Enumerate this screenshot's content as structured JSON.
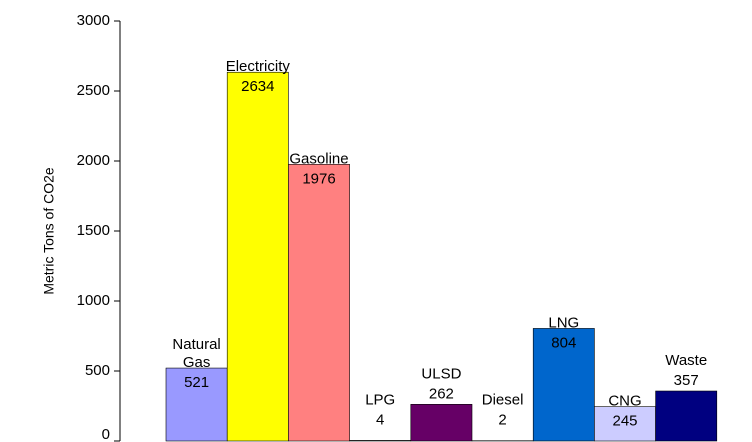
{
  "chart_data": {
    "type": "bar",
    "y_label": "Metric Tons of CO2e",
    "categories": [
      "Natural Gas",
      "Electricity",
      "Gasoline",
      "LPG",
      "ULSD",
      "Diesel",
      "LNG",
      "CNG",
      "Waste"
    ],
    "values": [
      521,
      2634,
      1976,
      4,
      262,
      2,
      804,
      245,
      357
    ],
    "colors": [
      "#9999ff",
      "#ffff00",
      "#ff8080",
      "#ccffff",
      "#660066",
      "#ff8080",
      "#0066cc",
      "#ccccff",
      "#000080"
    ],
    "ylim": [
      0,
      3000
    ],
    "yticks": [
      0,
      500,
      1000,
      1500,
      2000,
      2500,
      3000
    ],
    "grid": false
  }
}
